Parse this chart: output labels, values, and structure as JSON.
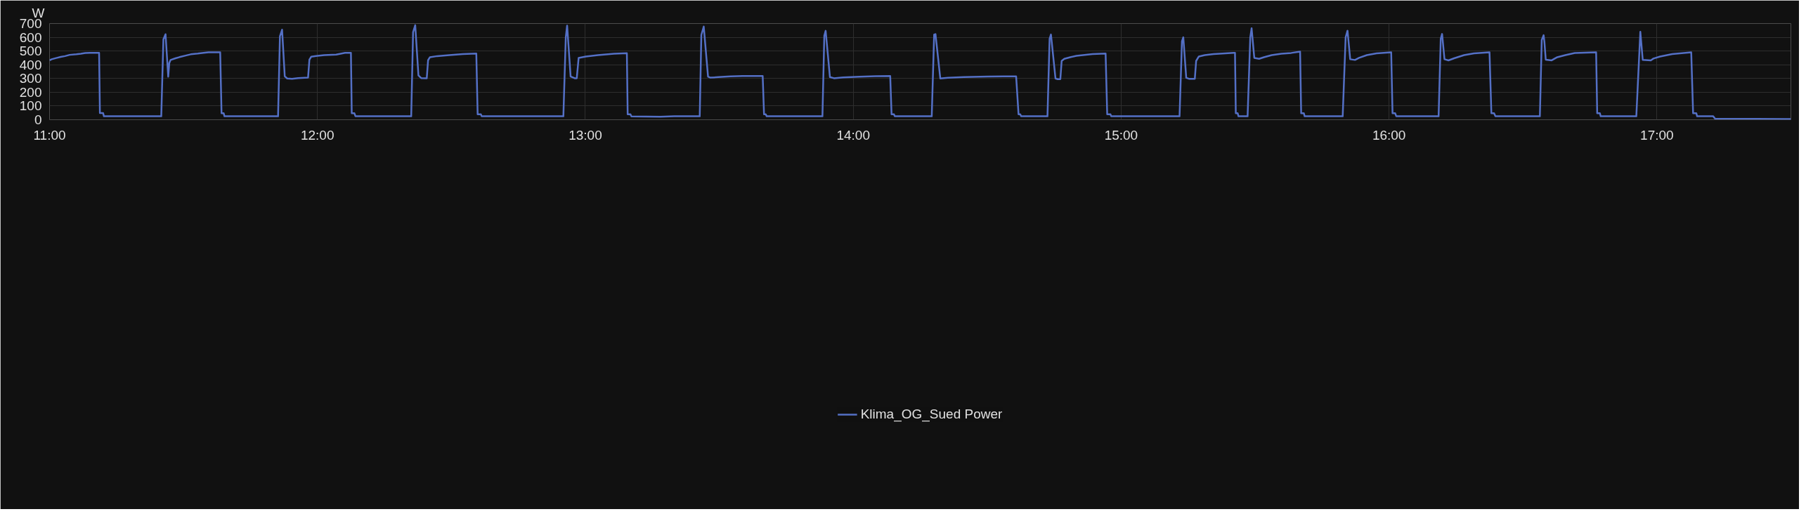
{
  "chart_data": {
    "type": "line",
    "ylabel": "W",
    "xlim": [
      11,
      17.5
    ],
    "ylim": [
      0,
      700
    ],
    "xticks": [
      {
        "value": 11,
        "label": "11:00"
      },
      {
        "value": 12,
        "label": "12:00"
      },
      {
        "value": 13,
        "label": "13:00"
      },
      {
        "value": 14,
        "label": "14:00"
      },
      {
        "value": 15,
        "label": "15:00"
      },
      {
        "value": 16,
        "label": "16:00"
      },
      {
        "value": 17,
        "label": "17:00"
      }
    ],
    "yticks": [
      0,
      100,
      200,
      300,
      400,
      500,
      600,
      700
    ],
    "grid": true,
    "legend": "bottom",
    "marker": "none",
    "line_style": "solid",
    "series": [
      {
        "name": "Klima_OG_Sued Power",
        "color": "#5470c6",
        "x": [
          11.0,
          11.008,
          11.025,
          11.042,
          11.058,
          11.075,
          11.1,
          11.117,
          11.133,
          11.15,
          11.185,
          11.188,
          11.2,
          11.203,
          11.417,
          11.425,
          11.433,
          11.443,
          11.447,
          11.452,
          11.47,
          11.488,
          11.508,
          11.527,
          11.553,
          11.575,
          11.593,
          11.637,
          11.642,
          11.65,
          11.653,
          11.853,
          11.86,
          11.868,
          11.878,
          11.887,
          11.905,
          11.928,
          11.965,
          11.97,
          11.977,
          11.995,
          12.025,
          12.07,
          12.103,
          12.125,
          12.128,
          12.138,
          12.142,
          12.35,
          12.357,
          12.365,
          12.377,
          12.387,
          12.408,
          12.413,
          12.42,
          12.447,
          12.492,
          12.543,
          12.593,
          12.598,
          12.61,
          12.613,
          12.918,
          12.927,
          12.932,
          12.945,
          12.96,
          12.968,
          12.975,
          13.002,
          13.047,
          13.107,
          13.155,
          13.158,
          13.168,
          13.172,
          13.28,
          13.332,
          13.427,
          13.433,
          13.442,
          13.458,
          13.467,
          13.497,
          13.542,
          13.587,
          13.662,
          13.667,
          13.673,
          13.677,
          13.885,
          13.892,
          13.897,
          13.913,
          13.928,
          13.962,
          14.023,
          14.083,
          14.138,
          14.143,
          14.152,
          14.155,
          14.293,
          14.302,
          14.307,
          14.325,
          14.353,
          14.413,
          14.503,
          14.563,
          14.608,
          14.617,
          14.623,
          14.627,
          14.725,
          14.733,
          14.738,
          14.755,
          14.763,
          14.773,
          14.778,
          14.788,
          14.81,
          14.833,
          14.857,
          14.893,
          14.942,
          14.948,
          14.96,
          14.963,
          15.218,
          15.227,
          15.232,
          15.243,
          15.253,
          15.275,
          15.28,
          15.29,
          15.312,
          15.345,
          15.388,
          15.42,
          15.425,
          15.428,
          15.435,
          15.438,
          15.472,
          15.482,
          15.487,
          15.497,
          15.515,
          15.533,
          15.562,
          15.598,
          15.635,
          15.668,
          15.672,
          15.682,
          15.685,
          15.827,
          15.838,
          15.845,
          15.855,
          15.873,
          15.888,
          15.917,
          15.953,
          16.008,
          16.013,
          16.023,
          16.027,
          16.185,
          16.193,
          16.198,
          16.207,
          16.222,
          16.243,
          16.28,
          16.317,
          16.375,
          16.382,
          16.392,
          16.397,
          16.563,
          16.57,
          16.577,
          16.58,
          16.585,
          16.607,
          16.628,
          16.658,
          16.693,
          16.773,
          16.777,
          16.787,
          16.79,
          16.923,
          16.938,
          16.947,
          16.977,
          16.987,
          17.012,
          17.057,
          17.128,
          17.135,
          17.147,
          17.15,
          17.21,
          17.217,
          17.373,
          17.5
        ],
        "values": [
          432,
          440,
          449,
          457,
          463,
          472,
          476,
          480,
          485,
          487,
          487,
          48,
          48,
          25,
          25,
          585,
          622,
          313,
          413,
          435,
          447,
          457,
          467,
          476,
          481,
          487,
          491,
          491,
          47,
          47,
          25,
          25,
          607,
          655,
          316,
          300,
          298,
          303,
          307,
          437,
          459,
          464,
          470,
          474,
          487,
          487,
          47,
          47,
          25,
          25,
          637,
          688,
          322,
          303,
          301,
          433,
          455,
          463,
          470,
          478,
          481,
          40,
          40,
          25,
          25,
          600,
          685,
          315,
          302,
          302,
          450,
          460,
          470,
          480,
          484,
          40,
          40,
          24,
          22,
          25,
          25,
          617,
          678,
          314,
          306,
          310,
          315,
          318,
          318,
          40,
          40,
          25,
          25,
          612,
          647,
          310,
          302,
          308,
          313,
          317,
          318,
          40,
          40,
          25,
          25,
          620,
          623,
          300,
          305,
          310,
          314,
          316,
          316,
          40,
          40,
          25,
          25,
          590,
          620,
          300,
          295,
          295,
          428,
          443,
          455,
          465,
          470,
          478,
          481,
          40,
          40,
          25,
          25,
          570,
          600,
          305,
          298,
          298,
          428,
          460,
          470,
          478,
          483,
          487,
          487,
          47,
          47,
          25,
          25,
          600,
          665,
          450,
          443,
          455,
          470,
          480,
          486,
          496,
          47,
          47,
          25,
          25,
          600,
          648,
          440,
          435,
          450,
          470,
          483,
          491,
          47,
          47,
          25,
          25,
          590,
          624,
          440,
          432,
          447,
          470,
          483,
          491,
          47,
          47,
          25,
          25,
          580,
          615,
          565,
          437,
          432,
          455,
          470,
          485,
          490,
          47,
          47,
          25,
          25,
          640,
          435,
          432,
          445,
          460,
          478,
          490,
          47,
          47,
          25,
          25,
          8,
          7,
          5
        ]
      }
    ]
  }
}
